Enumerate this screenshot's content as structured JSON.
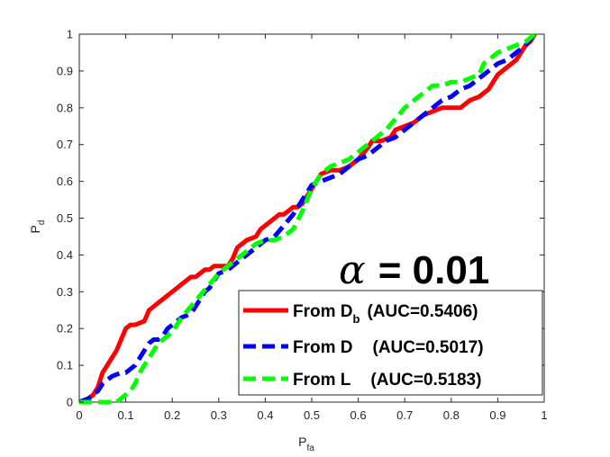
{
  "chart_data": {
    "type": "line",
    "xlabel": "P",
    "xlabel_sub": "fa",
    "ylabel": "P",
    "ylabel_sub": "d",
    "xlim": [
      0,
      1
    ],
    "ylim": [
      0,
      1
    ],
    "xticks": [
      "0",
      "0.1",
      "0.2",
      "0.3",
      "0.4",
      "0.5",
      "0.6",
      "0.7",
      "0.8",
      "0.9",
      "1"
    ],
    "yticks": [
      "0",
      "0.1",
      "0.2",
      "0.3",
      "0.4",
      "0.5",
      "0.6",
      "0.7",
      "0.8",
      "0.9",
      "1"
    ],
    "grid": false,
    "legend_position": "bottom-right",
    "annotation": {
      "symbol": "α",
      "text": "= 0.01"
    },
    "series": [
      {
        "name": "From D",
        "name_sub": "b",
        "auc": "(AUC=0.5406)",
        "color": "#ff0000",
        "style": "solid",
        "x": [
          0,
          0.02,
          0.03,
          0.04,
          0.05,
          0.06,
          0.07,
          0.08,
          0.09,
          0.1,
          0.11,
          0.12,
          0.14,
          0.15,
          0.16,
          0.17,
          0.18,
          0.19,
          0.2,
          0.21,
          0.22,
          0.23,
          0.24,
          0.25,
          0.26,
          0.27,
          0.28,
          0.29,
          0.3,
          0.31,
          0.32,
          0.33,
          0.34,
          0.35,
          0.36,
          0.38,
          0.39,
          0.4,
          0.41,
          0.43,
          0.44,
          0.45,
          0.46,
          0.47,
          0.48,
          0.49,
          0.5,
          0.52,
          0.54,
          0.56,
          0.58,
          0.59,
          0.6,
          0.62,
          0.63,
          0.65,
          0.67,
          0.68,
          0.7,
          0.72,
          0.74,
          0.76,
          0.78,
          0.8,
          0.82,
          0.84,
          0.86,
          0.88,
          0.9,
          0.91,
          0.92,
          0.93,
          0.94,
          0.95,
          0.96,
          0.97,
          0.98
        ],
        "y": [
          0,
          0.01,
          0.02,
          0.04,
          0.08,
          0.1,
          0.12,
          0.14,
          0.17,
          0.2,
          0.21,
          0.21,
          0.22,
          0.25,
          0.26,
          0.27,
          0.28,
          0.29,
          0.3,
          0.31,
          0.32,
          0.33,
          0.34,
          0.34,
          0.35,
          0.36,
          0.36,
          0.37,
          0.37,
          0.37,
          0.37,
          0.39,
          0.42,
          0.43,
          0.44,
          0.45,
          0.47,
          0.48,
          0.49,
          0.51,
          0.51,
          0.52,
          0.53,
          0.53,
          0.54,
          0.56,
          0.58,
          0.62,
          0.63,
          0.63,
          0.64,
          0.65,
          0.66,
          0.69,
          0.71,
          0.71,
          0.72,
          0.74,
          0.75,
          0.76,
          0.78,
          0.79,
          0.8,
          0.8,
          0.8,
          0.82,
          0.83,
          0.85,
          0.89,
          0.9,
          0.91,
          0.92,
          0.93,
          0.95,
          0.97,
          0.98,
          1.0
        ]
      },
      {
        "name": "From D",
        "name_sub": "",
        "auc": "(AUC=0.5017)",
        "color": "#0000ff",
        "style": "dashed",
        "x": [
          0,
          0.02,
          0.04,
          0.05,
          0.06,
          0.07,
          0.09,
          0.1,
          0.11,
          0.12,
          0.13,
          0.14,
          0.15,
          0.16,
          0.17,
          0.18,
          0.19,
          0.2,
          0.21,
          0.22,
          0.24,
          0.25,
          0.26,
          0.27,
          0.28,
          0.29,
          0.3,
          0.32,
          0.33,
          0.34,
          0.35,
          0.36,
          0.38,
          0.4,
          0.42,
          0.44,
          0.46,
          0.48,
          0.5,
          0.52,
          0.54,
          0.56,
          0.58,
          0.6,
          0.62,
          0.64,
          0.66,
          0.68,
          0.7,
          0.72,
          0.74,
          0.76,
          0.78,
          0.8,
          0.82,
          0.84,
          0.86,
          0.88,
          0.9,
          0.92,
          0.94,
          0.96,
          0.98
        ],
        "y": [
          0,
          0.01,
          0.03,
          0.05,
          0.06,
          0.07,
          0.08,
          0.08,
          0.09,
          0.1,
          0.12,
          0.14,
          0.16,
          0.17,
          0.17,
          0.18,
          0.2,
          0.21,
          0.22,
          0.23,
          0.24,
          0.26,
          0.28,
          0.3,
          0.31,
          0.33,
          0.35,
          0.36,
          0.37,
          0.38,
          0.39,
          0.4,
          0.42,
          0.44,
          0.45,
          0.48,
          0.51,
          0.55,
          0.59,
          0.6,
          0.61,
          0.62,
          0.64,
          0.66,
          0.67,
          0.69,
          0.71,
          0.72,
          0.74,
          0.76,
          0.78,
          0.8,
          0.82,
          0.83,
          0.85,
          0.86,
          0.88,
          0.9,
          0.92,
          0.93,
          0.95,
          0.97,
          1.0
        ]
      },
      {
        "name": "From L",
        "name_sub": "",
        "auc": "(AUC=0.5183)",
        "color": "#00ff00",
        "style": "dashed",
        "x": [
          0,
          0.04,
          0.06,
          0.07,
          0.08,
          0.09,
          0.1,
          0.11,
          0.12,
          0.13,
          0.14,
          0.15,
          0.16,
          0.17,
          0.18,
          0.19,
          0.2,
          0.21,
          0.22,
          0.24,
          0.26,
          0.28,
          0.3,
          0.32,
          0.34,
          0.36,
          0.38,
          0.4,
          0.42,
          0.44,
          0.46,
          0.48,
          0.5,
          0.52,
          0.54,
          0.56,
          0.58,
          0.6,
          0.62,
          0.64,
          0.66,
          0.68,
          0.7,
          0.72,
          0.74,
          0.76,
          0.78,
          0.8,
          0.82,
          0.84,
          0.86,
          0.87,
          0.88,
          0.9,
          0.92,
          0.94,
          0.96,
          0.98
        ],
        "y": [
          0,
          0,
          0,
          0,
          0,
          0.01,
          0.02,
          0.03,
          0.05,
          0.08,
          0.1,
          0.12,
          0.14,
          0.16,
          0.17,
          0.18,
          0.19,
          0.21,
          0.23,
          0.26,
          0.29,
          0.32,
          0.35,
          0.37,
          0.39,
          0.41,
          0.43,
          0.44,
          0.44,
          0.45,
          0.47,
          0.52,
          0.58,
          0.62,
          0.64,
          0.65,
          0.66,
          0.68,
          0.7,
          0.72,
          0.74,
          0.77,
          0.8,
          0.82,
          0.84,
          0.86,
          0.86,
          0.87,
          0.87,
          0.88,
          0.89,
          0.92,
          0.93,
          0.95,
          0.96,
          0.97,
          0.98,
          1.0
        ]
      }
    ]
  }
}
